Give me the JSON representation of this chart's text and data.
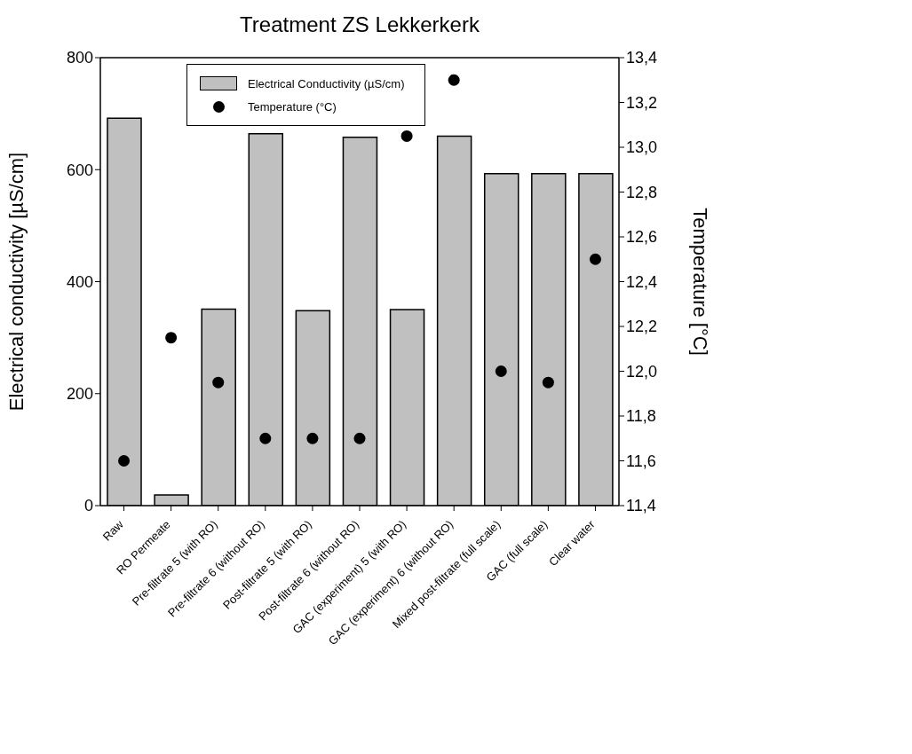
{
  "chart_data": {
    "type": "bar",
    "title": "Treatment ZS Lekkerkerk",
    "categories": [
      "Raw",
      "RO Permeate",
      "Pre-filtrate 5 (with RO)",
      "Pre-filtrate 6 (without RO)",
      "Post-filtrate 5 (with RO)",
      "Post-filtrate 6 (without RO)",
      "GAC (experiment) 5 (with RO)",
      "GAC (experiment) 6 (without RO)",
      "Mixed post-filtrate (full scale)",
      "GAC (full scale)",
      "Clear water"
    ],
    "series": [
      {
        "name": "Electrical Conductivity (µS/cm)",
        "color": "#c0c0c0",
        "values": [
          692,
          19,
          351,
          664,
          348,
          658,
          350,
          660,
          593,
          593,
          593
        ]
      },
      {
        "name": "Temperature (°C)",
        "type": "scatter",
        "axis": "y2",
        "color": "#000000",
        "values": [
          11.6,
          12.15,
          11.95,
          11.7,
          11.7,
          11.7,
          13.05,
          13.3,
          12.0,
          11.95,
          12.5
        ]
      }
    ],
    "ylabel": "Electrical conductivity [µS/cm]",
    "y2label": "Temperature [°C]",
    "ylim": [
      0,
      800
    ],
    "yticks": [
      0,
      200,
      400,
      600,
      800
    ],
    "y2lim": [
      11.4,
      13.4
    ],
    "y2ticks": [
      {
        "value": 11.4,
        "label": "11,4"
      },
      {
        "value": 11.6,
        "label": "11,6"
      },
      {
        "value": 11.8,
        "label": "11,8"
      },
      {
        "value": 12.0,
        "label": "12,0"
      },
      {
        "value": 12.2,
        "label": "12,2"
      },
      {
        "value": 12.4,
        "label": "12,4"
      },
      {
        "value": 12.6,
        "label": "12,6"
      },
      {
        "value": 12.8,
        "label": "12,8"
      },
      {
        "value": 13.0,
        "label": "13,0"
      },
      {
        "value": 13.2,
        "label": "13,2"
      },
      {
        "value": 13.4,
        "label": "13,4"
      }
    ],
    "marker": "circle",
    "legend": "top left",
    "grid": false
  }
}
